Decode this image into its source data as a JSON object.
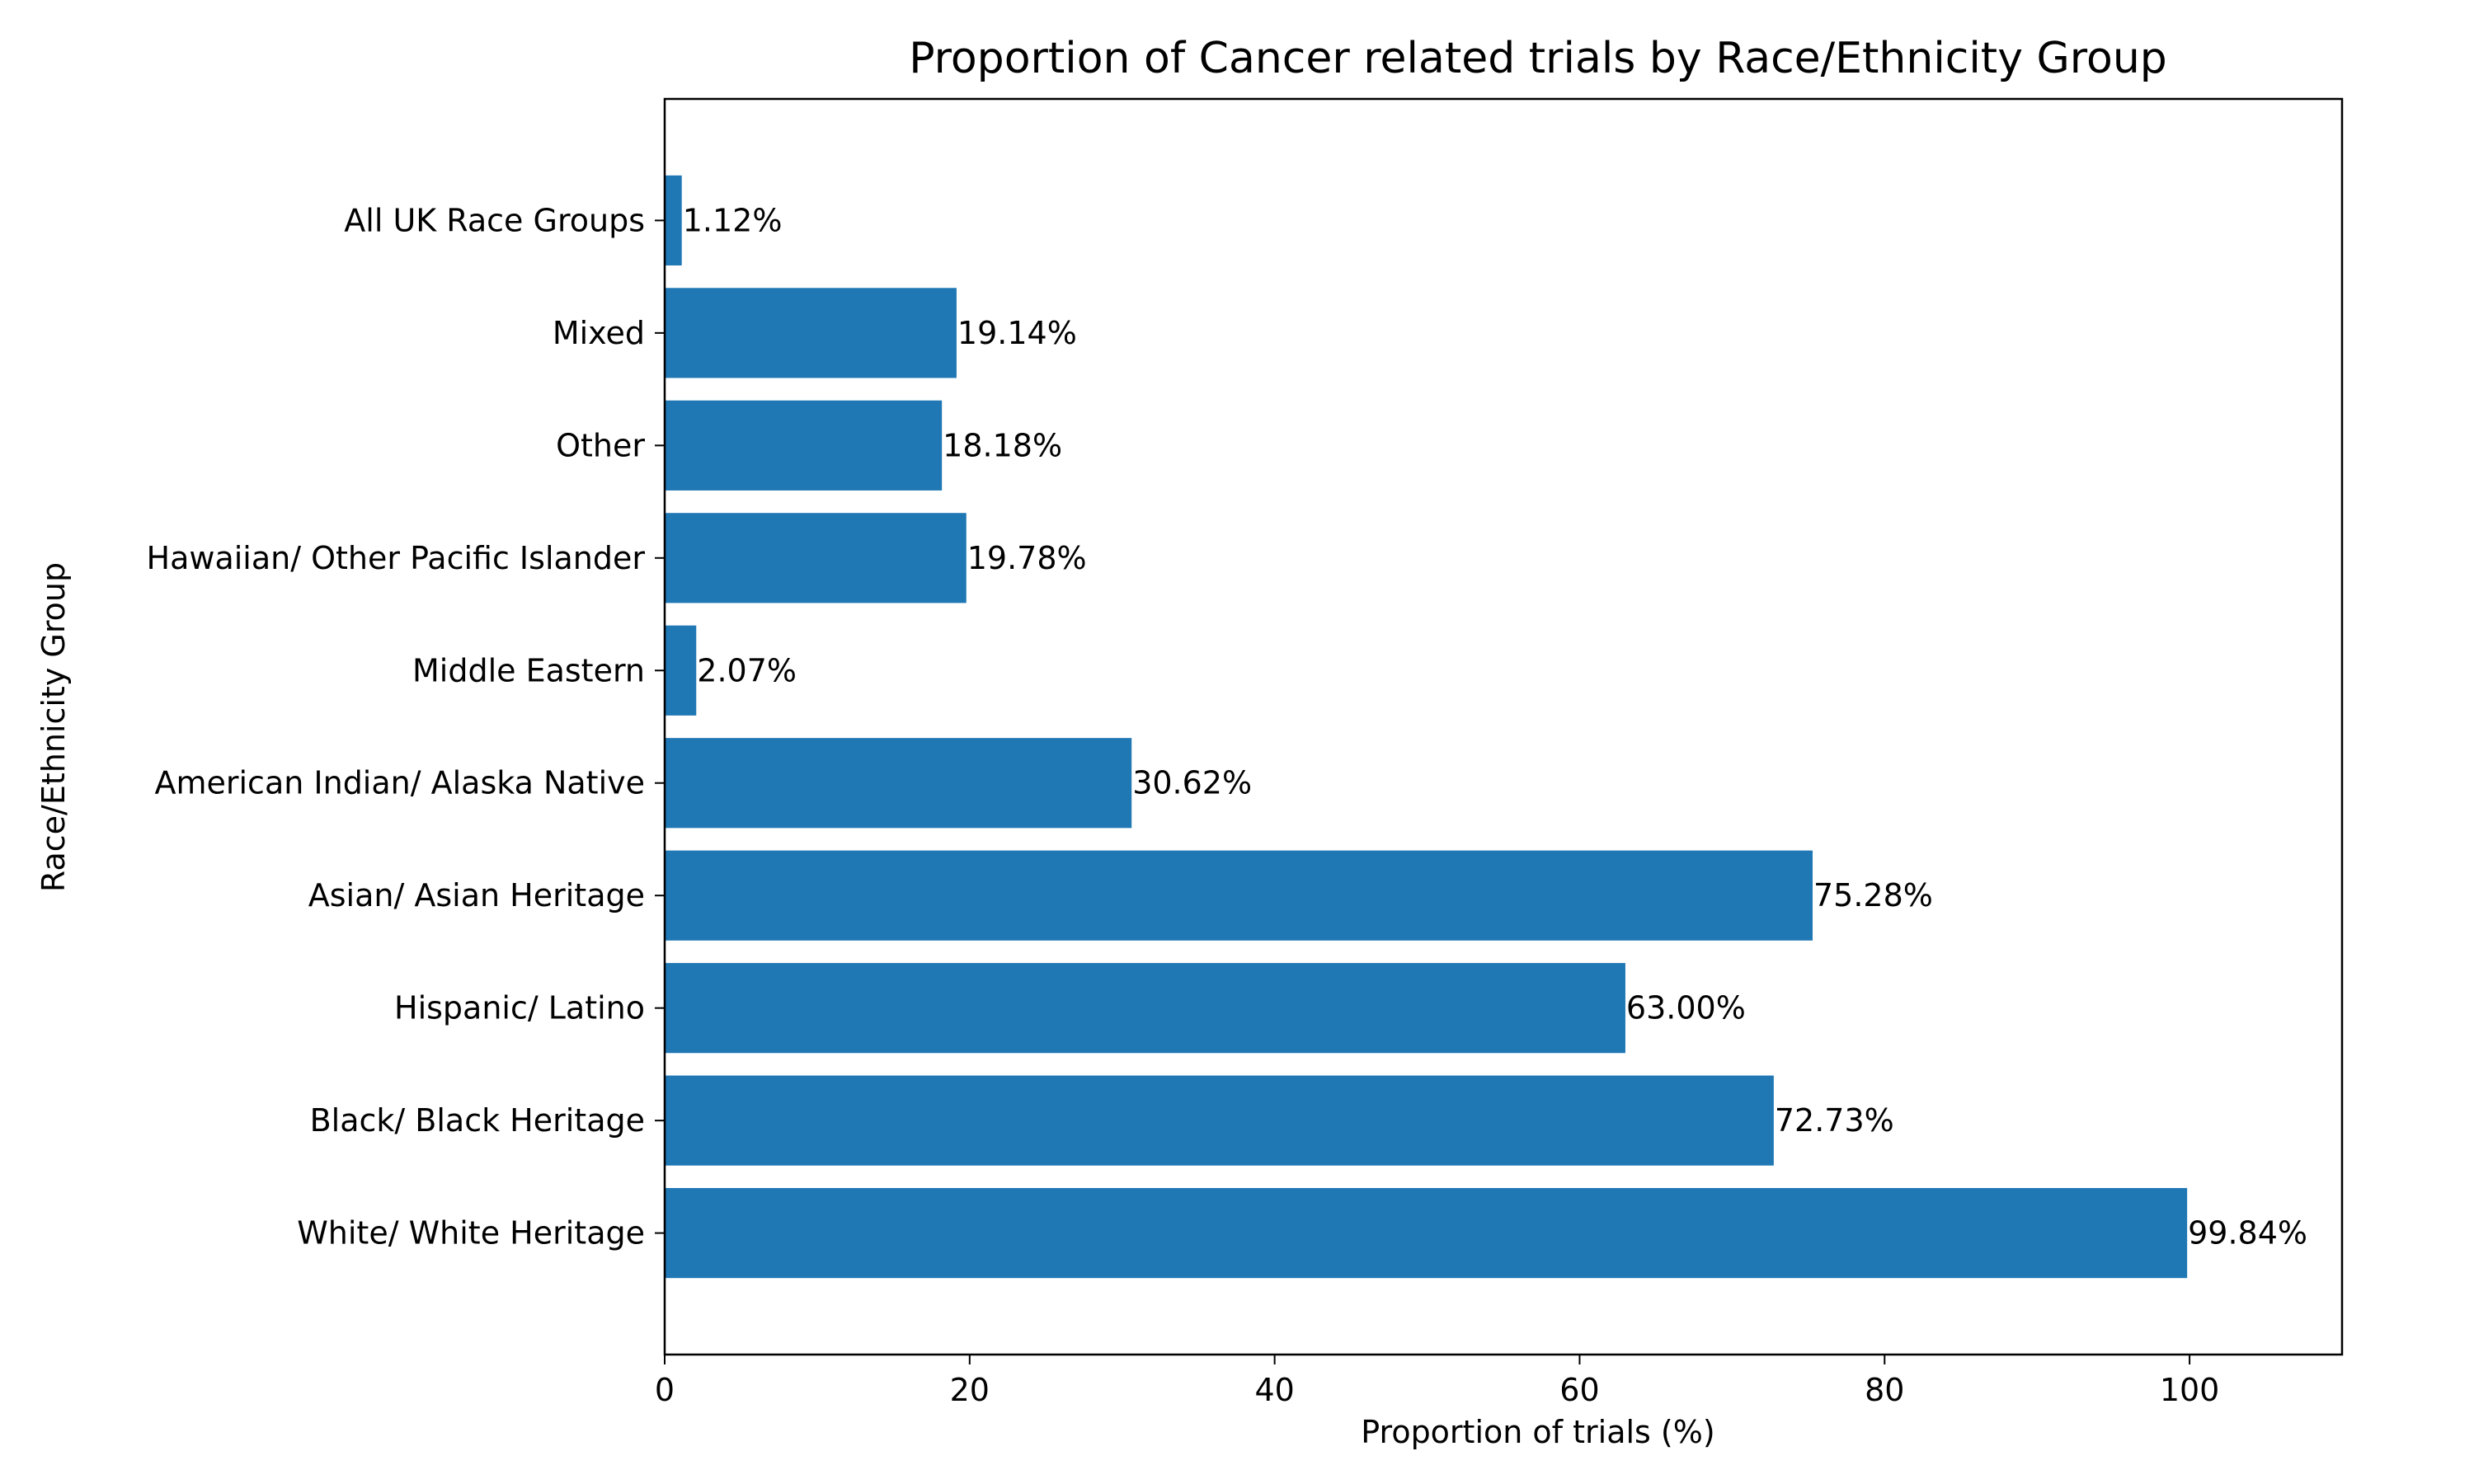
{
  "chart_data": {
    "type": "bar",
    "orientation": "horizontal",
    "title": "Proportion of Cancer related trials by Race/Ethnicity Group",
    "xlabel": "Proportion of trials (%)",
    "ylabel": "Race/Ethnicity Group",
    "categories": [
      "White/ White Heritage",
      "Black/ Black Heritage",
      "Hispanic/ Latino",
      "Asian/ Asian Heritage",
      "American Indian/ Alaska Native",
      "Middle Eastern",
      "Hawaiian/ Other Pacific Islander",
      "Other",
      "Mixed",
      "All UK Race Groups"
    ],
    "values": [
      99.84,
      72.73,
      63.0,
      75.28,
      30.62,
      2.07,
      19.78,
      18.18,
      19.14,
      1.12
    ],
    "value_labels": [
      "99.84%",
      "72.73%",
      "63.00%",
      "75.28%",
      "30.62%",
      "2.07%",
      "19.78%",
      "18.18%",
      "19.14%",
      "1.12%"
    ],
    "xlim": [
      0,
      110
    ],
    "xticks": [
      0,
      20,
      40,
      60,
      80,
      100
    ],
    "grid": false,
    "legend": "none",
    "bar_color": "#1f77b4"
  }
}
